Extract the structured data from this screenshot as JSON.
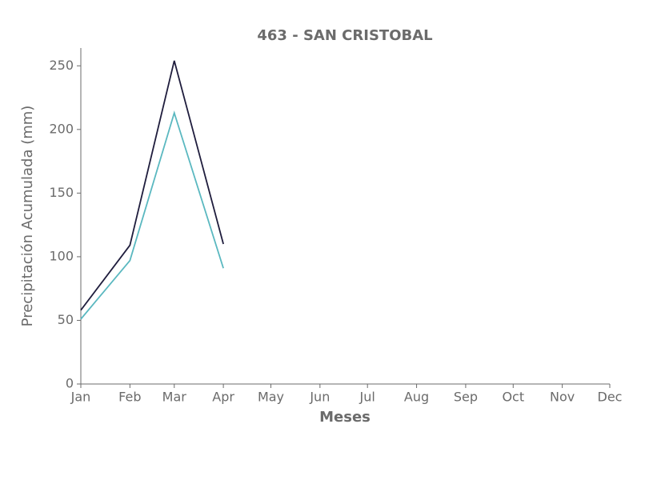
{
  "chart_data": {
    "type": "line",
    "title": "463 - SAN CRISTOBAL",
    "x_label": "Meses",
    "y_label": "Precipitación Acumulada (mm)",
    "categories": [
      "Jan",
      "Feb",
      "Mar",
      "Apr",
      "May",
      "Jun",
      "Jul",
      "Aug",
      "Sep",
      "Oct",
      "Nov",
      "Dec"
    ],
    "series": [
      {
        "color": "#1f1d3d",
        "values": [
          58,
          109,
          254,
          110,
          null,
          null,
          null,
          null,
          null,
          null,
          null,
          null
        ]
      },
      {
        "color": "#5ab8c0",
        "values": [
          51,
          97,
          213,
          91,
          null,
          null,
          null,
          null,
          null,
          null,
          null,
          null
        ]
      }
    ],
    "ylim": [
      0,
      264
    ],
    "yticks": [
      0,
      50,
      100,
      150,
      200,
      250
    ],
    "grid": false
  }
}
